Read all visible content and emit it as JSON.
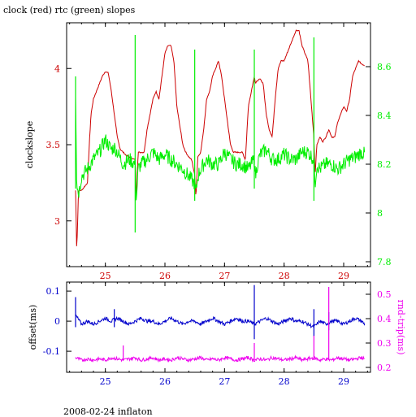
{
  "title": "clock (red) rtc (green) slopes",
  "footer": "2008-02-24 inflaton",
  "colors": {
    "clock": "#cc0000",
    "rtc": "#00ee00",
    "offset": "#0000cc",
    "rndtrip": "#ee00ee",
    "axis": "#000000"
  },
  "chart_data": [
    {
      "type": "line",
      "title": "clock (red) rtc (green) slopes",
      "xlim": [
        24.35,
        29.45
      ],
      "xticks": [
        "25",
        "26",
        "27",
        "28",
        "29"
      ],
      "ylabel_left": "clockslope",
      "ylim_left": [
        2.7,
        4.3
      ],
      "yticks_left": [
        "3",
        "3.5",
        "4"
      ],
      "ylim_right": [
        7.78,
        8.78
      ],
      "yticks_right": [
        "7.8",
        "8",
        "8.2",
        "8.4",
        "8.6"
      ],
      "series": [
        {
          "name": "clock",
          "axis": "left",
          "x": [
            24.5,
            24.52,
            24.55,
            24.6,
            24.7,
            24.73,
            24.76,
            24.8,
            24.85,
            24.9,
            24.95,
            25.0,
            25.05,
            25.1,
            25.15,
            25.2,
            25.25,
            25.3,
            25.35,
            25.4,
            25.45,
            25.5,
            25.52,
            25.55,
            25.6,
            25.65,
            25.7,
            25.75,
            25.8,
            25.85,
            25.9,
            25.95,
            26.0,
            26.05,
            26.1,
            26.15,
            26.2,
            26.3,
            26.35,
            26.4,
            26.45,
            26.5,
            26.52,
            26.55,
            26.6,
            26.65,
            26.7,
            26.75,
            26.8,
            26.85,
            26.9,
            26.95,
            27.0,
            27.05,
            27.1,
            27.15,
            27.2,
            27.25,
            27.3,
            27.35,
            27.4,
            27.45,
            27.5,
            27.52,
            27.55,
            27.6,
            27.65,
            27.7,
            27.75,
            27.8,
            27.85,
            27.9,
            27.95,
            28.0,
            28.05,
            28.1,
            28.15,
            28.2,
            28.25,
            28.3,
            28.35,
            28.4,
            28.45,
            28.5,
            28.52,
            28.55,
            28.6,
            28.65,
            28.7,
            28.75,
            28.8,
            28.85,
            28.9,
            28.95,
            29.0,
            29.05,
            29.1,
            29.15,
            29.2,
            29.25,
            29.3,
            29.35
          ],
          "values": [
            3.2,
            2.8,
            3.2,
            3.2,
            3.25,
            3.5,
            3.7,
            3.8,
            3.85,
            3.9,
            3.95,
            3.98,
            3.97,
            3.85,
            3.7,
            3.55,
            3.47,
            3.45,
            3.43,
            3.42,
            3.41,
            3.4,
            3.15,
            3.45,
            3.45,
            3.45,
            3.6,
            3.7,
            3.8,
            3.85,
            3.8,
            3.95,
            4.1,
            4.15,
            4.15,
            4.05,
            3.75,
            3.5,
            3.45,
            3.42,
            3.4,
            3.3,
            3.15,
            3.42,
            3.45,
            3.6,
            3.8,
            3.85,
            3.95,
            4.0,
            4.05,
            3.95,
            3.8,
            3.65,
            3.5,
            3.45,
            3.45,
            3.45,
            3.45,
            3.4,
            3.75,
            3.85,
            3.95,
            3.9,
            3.92,
            3.93,
            3.9,
            3.7,
            3.6,
            3.55,
            3.8,
            4.0,
            4.05,
            4.05,
            4.1,
            4.15,
            4.2,
            4.25,
            4.25,
            4.15,
            4.1,
            4.05,
            3.8,
            3.55,
            3.3,
            3.5,
            3.55,
            3.52,
            3.55,
            3.6,
            3.55,
            3.55,
            3.65,
            3.7,
            3.75,
            3.72,
            3.8,
            3.95,
            4.0,
            4.05,
            4.03,
            4.02
          ]
        },
        {
          "name": "rtc",
          "axis": "right",
          "x": [
            24.5,
            24.52,
            24.55,
            24.6,
            24.7,
            24.75,
            24.8,
            24.9,
            25.0,
            25.05,
            25.1,
            25.15,
            25.2,
            25.3,
            25.4,
            25.5,
            25.52,
            25.55,
            25.6,
            25.7,
            25.8,
            25.9,
            26.0,
            26.1,
            26.2,
            26.3,
            26.4,
            26.5,
            26.52,
            26.55,
            26.6,
            26.7,
            26.8,
            26.9,
            27.0,
            27.1,
            27.2,
            27.3,
            27.4,
            27.5,
            27.52,
            27.55,
            27.6,
            27.7,
            27.8,
            27.9,
            28.0,
            28.1,
            28.2,
            28.3,
            28.4,
            28.5,
            28.52,
            28.55,
            28.6,
            28.7,
            28.8,
            28.9,
            29.0,
            29.1,
            29.2,
            29.3,
            29.35
          ],
          "values": [
            8.5,
            8.12,
            8.08,
            8.15,
            8.18,
            8.2,
            8.22,
            8.25,
            8.3,
            8.28,
            8.26,
            8.27,
            8.25,
            8.2,
            8.22,
            8.2,
            8.05,
            8.18,
            8.2,
            8.22,
            8.25,
            8.22,
            8.24,
            8.22,
            8.2,
            8.18,
            8.15,
            8.12,
            8.08,
            8.15,
            8.18,
            8.22,
            8.2,
            8.2,
            8.25,
            8.22,
            8.2,
            8.2,
            8.18,
            8.22,
            8.15,
            8.2,
            8.24,
            8.26,
            8.22,
            8.22,
            8.24,
            8.22,
            8.22,
            8.25,
            8.25,
            8.22,
            8.12,
            8.2,
            8.18,
            8.2,
            8.2,
            8.18,
            8.2,
            8.22,
            8.23,
            8.25,
            8.24
          ]
        }
      ],
      "spikes": [
        {
          "series": "rtc",
          "x": 24.5,
          "ymin": 8.1,
          "ymax": 8.56
        },
        {
          "series": "rtc",
          "x": 25.5,
          "ymin": 7.92,
          "ymax": 8.73
        },
        {
          "series": "rtc",
          "x": 26.5,
          "ymin": 8.05,
          "ymax": 8.67
        },
        {
          "series": "rtc",
          "x": 27.5,
          "ymin": 8.1,
          "ymax": 8.67
        },
        {
          "series": "rtc",
          "x": 28.5,
          "ymin": 8.05,
          "ymax": 8.72
        }
      ]
    },
    {
      "type": "line",
      "xlim": [
        24.35,
        29.45
      ],
      "xticks": [
        "25",
        "26",
        "27",
        "28",
        "29"
      ],
      "ylabel_left": "offset(ms)",
      "ylim_left": [
        -0.17,
        0.13
      ],
      "yticks_left": [
        "-0.1",
        "0",
        "0.1"
      ],
      "ylabel_right": "rnd-trip(ms)",
      "ylim_right": [
        0.18,
        0.55
      ],
      "yticks_right": [
        "0.2",
        "0.3",
        "0.4",
        "0.5"
      ],
      "series": [
        {
          "name": "offset",
          "axis": "left",
          "x": [
            24.5,
            24.6,
            24.7,
            24.8,
            24.9,
            25.0,
            25.1,
            25.2,
            25.3,
            25.4,
            25.5,
            25.6,
            25.7,
            25.8,
            25.9,
            26.0,
            26.1,
            26.2,
            26.3,
            26.4,
            26.5,
            26.6,
            26.7,
            26.8,
            26.9,
            27.0,
            27.1,
            27.2,
            27.3,
            27.4,
            27.5,
            27.6,
            27.7,
            27.8,
            27.9,
            28.0,
            28.1,
            28.2,
            28.3,
            28.4,
            28.5,
            28.6,
            28.7,
            28.8,
            28.9,
            29.0,
            29.1,
            29.2,
            29.3,
            29.35
          ],
          "values": [
            0.02,
            -0.01,
            0.0,
            -0.01,
            0.0,
            0.01,
            0.0,
            0.01,
            0.0,
            -0.01,
            0.0,
            0.01,
            0.0,
            0.0,
            -0.01,
            0.0,
            0.01,
            0.0,
            -0.01,
            0.0,
            0.0,
            -0.01,
            0.0,
            0.01,
            0.0,
            -0.01,
            0.0,
            0.01,
            0.0,
            0.0,
            -0.01,
            0.0,
            0.01,
            0.0,
            -0.01,
            0.0,
            0.01,
            0.0,
            0.0,
            -0.01,
            -0.02,
            0.0,
            -0.01,
            0.0,
            0.0,
            -0.01,
            0.0,
            0.01,
            0.0,
            -0.01
          ]
        },
        {
          "name": "rnd-trip",
          "axis": "right",
          "x": [
            24.5,
            24.6,
            24.7,
            24.8,
            24.9,
            25.0,
            25.1,
            25.2,
            25.3,
            25.4,
            25.5,
            25.6,
            25.7,
            25.8,
            25.9,
            26.0,
            26.1,
            26.2,
            26.3,
            26.4,
            26.5,
            26.6,
            26.7,
            26.8,
            26.9,
            27.0,
            27.1,
            27.2,
            27.3,
            27.4,
            27.5,
            27.6,
            27.7,
            27.8,
            27.9,
            28.0,
            28.1,
            28.2,
            28.3,
            28.4,
            28.5,
            28.6,
            28.7,
            28.8,
            28.9,
            29.0,
            29.1,
            29.2,
            29.3,
            29.35
          ],
          "values": [
            0.24,
            0.23,
            0.235,
            0.23,
            0.235,
            0.23,
            0.24,
            0.235,
            0.23,
            0.235,
            0.24,
            0.23,
            0.235,
            0.24,
            0.23,
            0.235,
            0.23,
            0.24,
            0.235,
            0.23,
            0.235,
            0.24,
            0.23,
            0.235,
            0.23,
            0.24,
            0.235,
            0.23,
            0.235,
            0.24,
            0.23,
            0.235,
            0.23,
            0.24,
            0.235,
            0.23,
            0.235,
            0.24,
            0.23,
            0.235,
            0.24,
            0.23,
            0.235,
            0.23,
            0.24,
            0.235,
            0.23,
            0.235,
            0.24,
            0.235
          ]
        }
      ],
      "spikes": [
        {
          "series": "offset",
          "x": 24.5,
          "ymin": -0.02,
          "ymax": 0.08
        },
        {
          "series": "offset",
          "x": 25.15,
          "ymin": -0.02,
          "ymax": 0.04
        },
        {
          "series": "offset",
          "x": 27.5,
          "ymin": -0.06,
          "ymax": 0.12
        },
        {
          "series": "offset",
          "x": 28.5,
          "ymin": -0.05,
          "ymax": 0.04
        },
        {
          "series": "offset",
          "x": 28.75,
          "ymin": -0.03,
          "ymax": 0.03
        },
        {
          "series": "rnd-trip",
          "x": 25.3,
          "ymin": 0.23,
          "ymax": 0.29
        },
        {
          "series": "rnd-trip",
          "x": 27.5,
          "ymin": 0.23,
          "ymax": 0.3
        },
        {
          "series": "rnd-trip",
          "x": 28.5,
          "ymin": 0.23,
          "ymax": 0.33
        },
        {
          "series": "rnd-trip",
          "x": 28.75,
          "ymin": 0.23,
          "ymax": 0.53
        }
      ]
    }
  ]
}
